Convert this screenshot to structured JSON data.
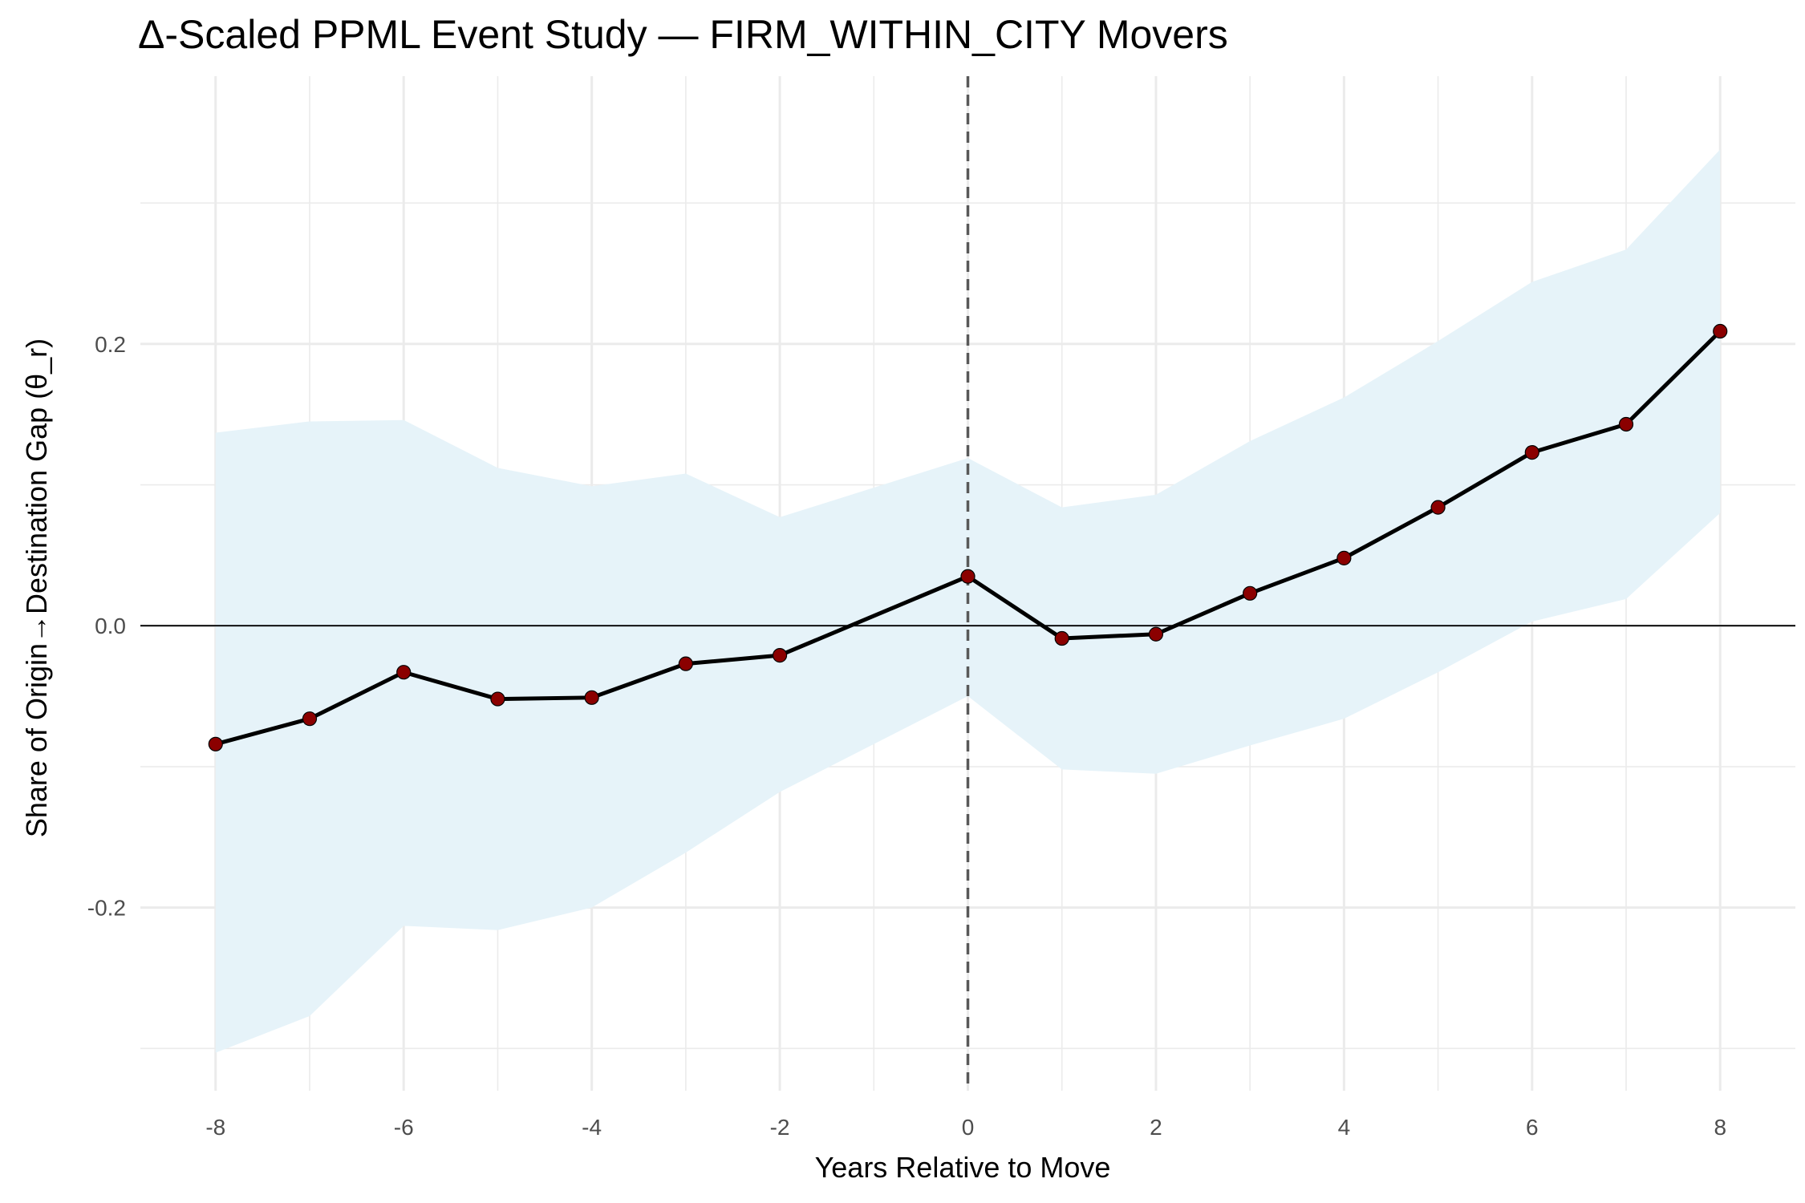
{
  "chart_data": {
    "type": "line",
    "title": "Δ-Scaled PPML Event Study — FIRM_WITHIN_CITY Movers",
    "xlabel": "Years Relative to Move",
    "ylabel": "Share of Origin→Destination Gap (θ_r)",
    "xlim": [
      -8.8,
      8.8
    ],
    "ylim": [
      -0.33,
      0.39
    ],
    "x_ticks": [
      -8,
      -6,
      -4,
      -2,
      0,
      2,
      4,
      6,
      8
    ],
    "x_tick_labels": [
      "-8",
      "-6",
      "-4",
      "-2",
      "0",
      "2",
      "4",
      "6",
      "8"
    ],
    "y_ticks": [
      -0.2,
      0.0,
      0.2
    ],
    "y_tick_labels": [
      "-0.2",
      "0.0",
      "0.2"
    ],
    "grid": true,
    "reference_lines": {
      "horizontal_y": 0,
      "vertical_dashed_x": 0
    },
    "series": [
      {
        "x": [
          -8,
          -7,
          -6,
          -5,
          -4,
          -3,
          -2,
          0,
          1,
          2,
          3,
          4,
          5,
          6,
          7,
          8
        ],
        "y": [
          -0.084,
          -0.066,
          -0.033,
          -0.052,
          -0.051,
          -0.027,
          -0.021,
          0.035,
          -0.009,
          -0.006,
          0.023,
          0.048,
          0.084,
          0.123,
          0.143,
          0.209
        ],
        "ci_lower": [
          -0.303,
          -0.277,
          -0.213,
          -0.216,
          -0.2,
          -0.161,
          -0.118,
          -0.05,
          -0.102,
          -0.105,
          -0.085,
          -0.066,
          -0.033,
          0.003,
          0.019,
          0.08
        ],
        "ci_upper": [
          0.137,
          0.145,
          0.146,
          0.112,
          0.099,
          0.108,
          0.077,
          0.119,
          0.084,
          0.093,
          0.131,
          0.162,
          0.202,
          0.244,
          0.267,
          0.338
        ]
      }
    ],
    "colors": {
      "line": "#000000",
      "points": "#8b0000",
      "ci_band": "#e6f3f9",
      "grid": "#ebebeb",
      "zero_line": "#000000",
      "event_line": "#595959"
    }
  }
}
